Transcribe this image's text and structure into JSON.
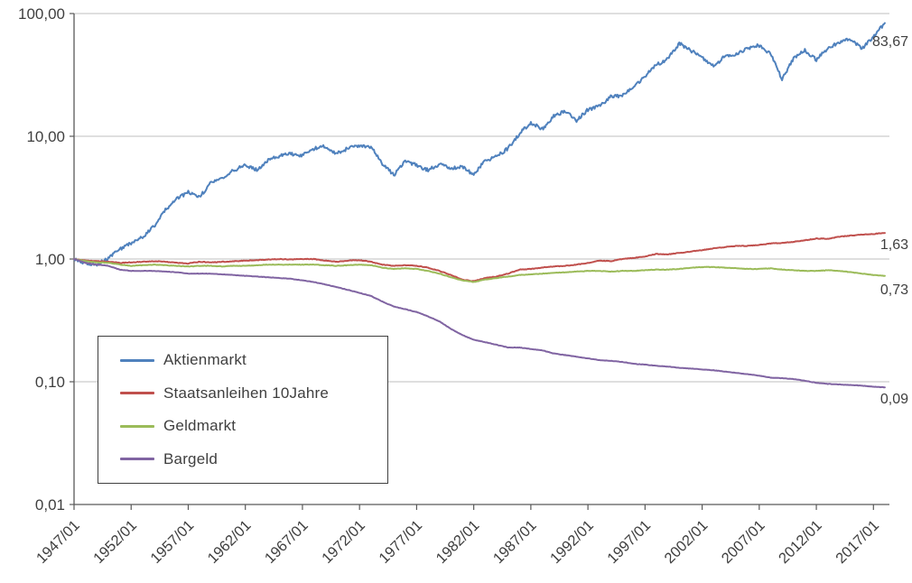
{
  "chart_data": {
    "type": "line",
    "title": "",
    "y_axis": {
      "scale": "log",
      "min": 0.01,
      "max": 100,
      "ticks": [
        {
          "label": "100,00",
          "value": 100
        },
        {
          "label": "10,00",
          "value": 10
        },
        {
          "label": "1,00",
          "value": 1
        },
        {
          "label": "0,10",
          "value": 0.1
        },
        {
          "label": "0,01",
          "value": 0.01
        }
      ]
    },
    "x_axis": {
      "min": 1947,
      "max": 2018.4,
      "ticks": [
        {
          "label": "1947/01",
          "year": 1947
        },
        {
          "label": "1952/01",
          "year": 1952
        },
        {
          "label": "1957/01",
          "year": 1957
        },
        {
          "label": "1962/01",
          "year": 1962
        },
        {
          "label": "1967/01",
          "year": 1967
        },
        {
          "label": "1972/01",
          "year": 1972
        },
        {
          "label": "1977/01",
          "year": 1977
        },
        {
          "label": "1982/01",
          "year": 1982
        },
        {
          "label": "1987/01",
          "year": 1987
        },
        {
          "label": "1992/01",
          "year": 1992
        },
        {
          "label": "1997/01",
          "year": 1997
        },
        {
          "label": "2002/01",
          "year": 2002
        },
        {
          "label": "2007/01",
          "year": 2007
        },
        {
          "label": "2012/01",
          "year": 2012
        },
        {
          "label": "2017/01",
          "year": 2017
        }
      ]
    },
    "years": [
      1947,
      1948,
      1949,
      1950,
      1951,
      1952,
      1953,
      1954,
      1955,
      1956,
      1957,
      1958,
      1959,
      1960,
      1961,
      1962,
      1963,
      1964,
      1965,
      1966,
      1967,
      1968,
      1969,
      1970,
      1971,
      1972,
      1973,
      1974,
      1975,
      1976,
      1977,
      1978,
      1979,
      1980,
      1981,
      1982,
      1983,
      1984,
      1985,
      1986,
      1987,
      1988,
      1989,
      1990,
      1991,
      1992,
      1993,
      1994,
      1995,
      1996,
      1997,
      1998,
      1999,
      2000,
      2001,
      2002,
      2003,
      2004,
      2005,
      2006,
      2007,
      2008,
      2009,
      2010,
      2011,
      2012,
      2013,
      2014,
      2015,
      2016,
      2017,
      2018
    ],
    "series": [
      {
        "name": "Aktienmarkt",
        "color": "#4F81BD",
        "end_label": "83,67",
        "end_value": 83.67,
        "values": [
          1.0,
          0.93,
          0.9,
          1.02,
          1.2,
          1.35,
          1.5,
          1.85,
          2.5,
          3.1,
          3.5,
          3.2,
          4.2,
          4.5,
          5.3,
          5.8,
          5.3,
          6.4,
          6.9,
          7.2,
          7.0,
          7.9,
          8.3,
          7.2,
          8.0,
          8.4,
          8.2,
          6.0,
          4.8,
          6.3,
          5.8,
          5.3,
          5.9,
          5.5,
          5.6,
          4.9,
          6.3,
          6.8,
          8.0,
          10.5,
          13.0,
          11.5,
          14.5,
          16.0,
          13.5,
          16.5,
          17.5,
          21.0,
          21.5,
          25.0,
          31.0,
          38.0,
          43.0,
          57.0,
          50.0,
          44.0,
          37.0,
          45.0,
          47.0,
          52.0,
          55.0,
          47.0,
          29.0,
          43.0,
          50.0,
          42.0,
          52.0,
          58.0,
          62.0,
          52.0,
          65.0,
          83.67
        ]
      },
      {
        "name": "Staatsanleihen 10Jahre",
        "color": "#C0504D",
        "end_label": "1,63",
        "end_value": 1.63,
        "values": [
          1.0,
          0.97,
          0.96,
          0.95,
          0.93,
          0.94,
          0.95,
          0.96,
          0.95,
          0.93,
          0.92,
          0.95,
          0.94,
          0.95,
          0.96,
          0.97,
          0.98,
          0.99,
          1.0,
          0.99,
          1.0,
          1.0,
          0.97,
          0.95,
          0.97,
          0.98,
          0.95,
          0.9,
          0.88,
          0.89,
          0.88,
          0.85,
          0.8,
          0.74,
          0.68,
          0.66,
          0.7,
          0.72,
          0.76,
          0.82,
          0.83,
          0.85,
          0.87,
          0.88,
          0.9,
          0.93,
          0.97,
          0.96,
          1.0,
          1.02,
          1.05,
          1.1,
          1.09,
          1.12,
          1.15,
          1.18,
          1.22,
          1.25,
          1.28,
          1.28,
          1.3,
          1.34,
          1.35,
          1.38,
          1.42,
          1.47,
          1.46,
          1.52,
          1.55,
          1.58,
          1.6,
          1.63
        ]
      },
      {
        "name": "Geldmarkt",
        "color": "#9BBB59",
        "end_label": "0,73",
        "end_value": 0.73,
        "values": [
          1.0,
          0.96,
          0.94,
          0.93,
          0.9,
          0.88,
          0.89,
          0.9,
          0.89,
          0.88,
          0.87,
          0.88,
          0.88,
          0.87,
          0.88,
          0.88,
          0.89,
          0.9,
          0.9,
          0.9,
          0.9,
          0.9,
          0.89,
          0.88,
          0.89,
          0.9,
          0.89,
          0.85,
          0.83,
          0.84,
          0.83,
          0.8,
          0.76,
          0.71,
          0.67,
          0.65,
          0.68,
          0.7,
          0.72,
          0.74,
          0.75,
          0.76,
          0.77,
          0.78,
          0.79,
          0.8,
          0.8,
          0.79,
          0.8,
          0.8,
          0.81,
          0.82,
          0.82,
          0.83,
          0.85,
          0.86,
          0.86,
          0.85,
          0.84,
          0.83,
          0.83,
          0.84,
          0.82,
          0.81,
          0.8,
          0.8,
          0.81,
          0.8,
          0.78,
          0.76,
          0.74,
          0.73
        ]
      },
      {
        "name": "Bargeld",
        "color": "#8064A2",
        "end_label": "0,09",
        "end_value": 0.09,
        "values": [
          1.0,
          0.93,
          0.9,
          0.88,
          0.82,
          0.8,
          0.8,
          0.8,
          0.79,
          0.78,
          0.76,
          0.76,
          0.76,
          0.75,
          0.74,
          0.73,
          0.72,
          0.71,
          0.7,
          0.69,
          0.67,
          0.65,
          0.62,
          0.59,
          0.56,
          0.53,
          0.5,
          0.45,
          0.41,
          0.39,
          0.37,
          0.34,
          0.31,
          0.27,
          0.24,
          0.22,
          0.21,
          0.2,
          0.19,
          0.19,
          0.185,
          0.18,
          0.17,
          0.165,
          0.16,
          0.155,
          0.15,
          0.148,
          0.145,
          0.14,
          0.138,
          0.135,
          0.133,
          0.13,
          0.128,
          0.126,
          0.124,
          0.121,
          0.118,
          0.115,
          0.112,
          0.108,
          0.107,
          0.105,
          0.102,
          0.098,
          0.096,
          0.095,
          0.094,
          0.093,
          0.091,
          0.09
        ]
      }
    ],
    "legend_position": "bottom-left",
    "grid": "horizontal",
    "colors": {
      "grid": "#bfbfbf",
      "axis": "#595959",
      "text": "#3f3f3f",
      "background": "#ffffff"
    }
  }
}
